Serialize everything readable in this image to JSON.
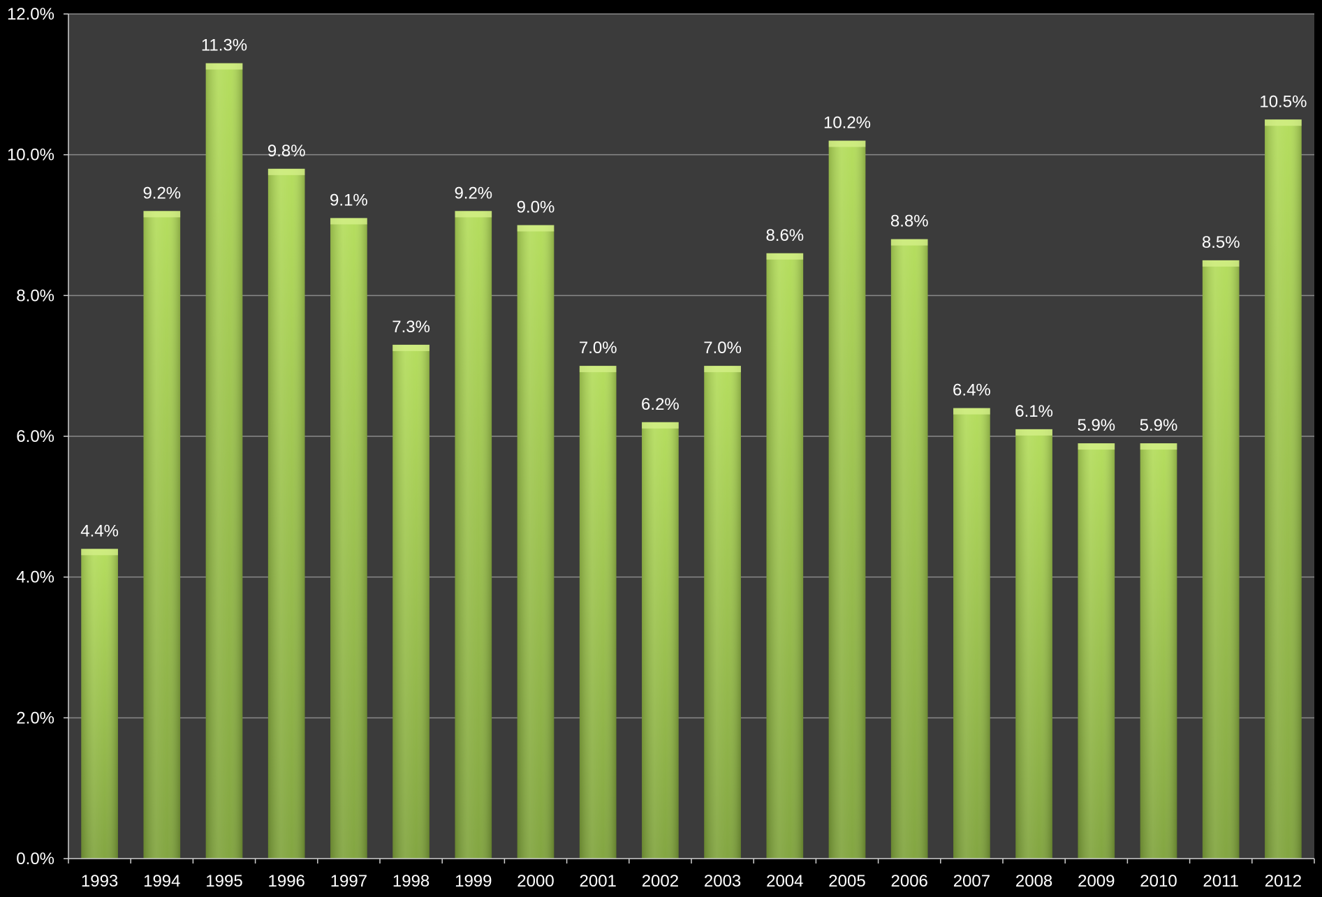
{
  "chart_data": {
    "type": "bar",
    "categories": [
      "1993",
      "1994",
      "1995",
      "1996",
      "1997",
      "1998",
      "1999",
      "2000",
      "2001",
      "2002",
      "2003",
      "2004",
      "2005",
      "2006",
      "2007",
      "2008",
      "2009",
      "2010",
      "2011",
      "2012"
    ],
    "values": [
      4.4,
      9.2,
      11.3,
      9.8,
      9.1,
      7.3,
      9.2,
      9.0,
      7.0,
      6.2,
      7.0,
      8.6,
      10.2,
      8.8,
      6.4,
      6.1,
      5.9,
      5.9,
      8.5,
      10.5
    ],
    "data_labels": [
      "4.4%",
      "9.2%",
      "11.3%",
      "9.8%",
      "9.1%",
      "7.3%",
      "9.2%",
      "9.0%",
      "7.0%",
      "6.2%",
      "7.0%",
      "8.6%",
      "10.2%",
      "8.8%",
      "6.4%",
      "6.1%",
      "5.9%",
      "5.9%",
      "8.5%",
      "10.5%"
    ],
    "title": "",
    "xlabel": "",
    "ylabel": "",
    "ylim": [
      0,
      12
    ],
    "yticks": [
      0,
      2,
      4,
      6,
      8,
      10,
      12
    ],
    "ytick_labels": [
      "0.0%",
      "2.0%",
      "4.0%",
      "6.0%",
      "8.0%",
      "10.0%",
      "12.0%"
    ],
    "grid": true,
    "legend": "none",
    "colors": {
      "background": "#000000",
      "plot_area": "#3b3b3b",
      "gridline": "#8a8a8a",
      "bar_light": "#b2dc58",
      "bar_dark": "#7ea23a",
      "text": "#ffffff"
    }
  }
}
